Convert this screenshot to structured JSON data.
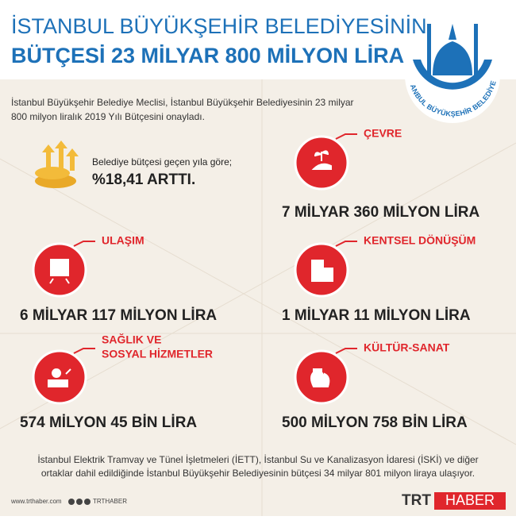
{
  "header": {
    "title_lines": [
      "İSTANBUL BÜYÜKŞEHİR BELEDİYESİNİN",
      "BÜTÇESİ 23 MİLYAR 800 MİLYON LİRA"
    ]
  },
  "logo": {
    "text": "İSTANBUL BÜYÜKŞEHİR BELEDİYESİ"
  },
  "intro": {
    "lines": [
      "İstanbul Büyükşehir Belediye Meclisi, İstanbul Büyükşehir Belediyesinin 23 milyar",
      "800 milyon liralık 2019 Yılı Bütçesini onayladı."
    ]
  },
  "increase": {
    "label": "Belediye bütçesi geçen yıla göre;",
    "value": "%18,41 ARTTI."
  },
  "items": [
    {
      "label_lines": [
        "ÇEVRE"
      ],
      "amount": "7 MİLYAR 360 MİLYON LİRA"
    },
    {
      "label_lines": [
        "ULAŞIM"
      ],
      "amount": "6 MİLYAR 117 MİLYON LİRA"
    },
    {
      "label_lines": [
        "KENTSEL DÖNÜŞÜM"
      ],
      "amount": "1 MİLYAR 11 MİLYON LİRA"
    },
    {
      "label_lines": [
        "SAĞLIK VE",
        "SOSYAL HİZMETLER"
      ],
      "amount": "574 MİLYON 45 BİN LİRA"
    },
    {
      "label_lines": [
        "KÜLTÜR-SANAT"
      ],
      "amount": "500 MİLYON 758 BİN LİRA"
    }
  ],
  "note": {
    "lines": [
      "İstanbul Elektrik Tramvay ve Tünel İşletmeleri (İETT), İstanbul Su ve Kanalizasyon İdaresi (İSKİ) ve diğer",
      "ortaklar dahil edildiğinde İstanbul Büyükşehir Belediyesinin bütçesi 34 milyar 801 milyon liraya ulaşıyor."
    ]
  },
  "footer": {
    "website": "www.trthaber.com",
    "social": "TRTHABER",
    "brand": "TRT",
    "brand_suffix": "HABER"
  }
}
